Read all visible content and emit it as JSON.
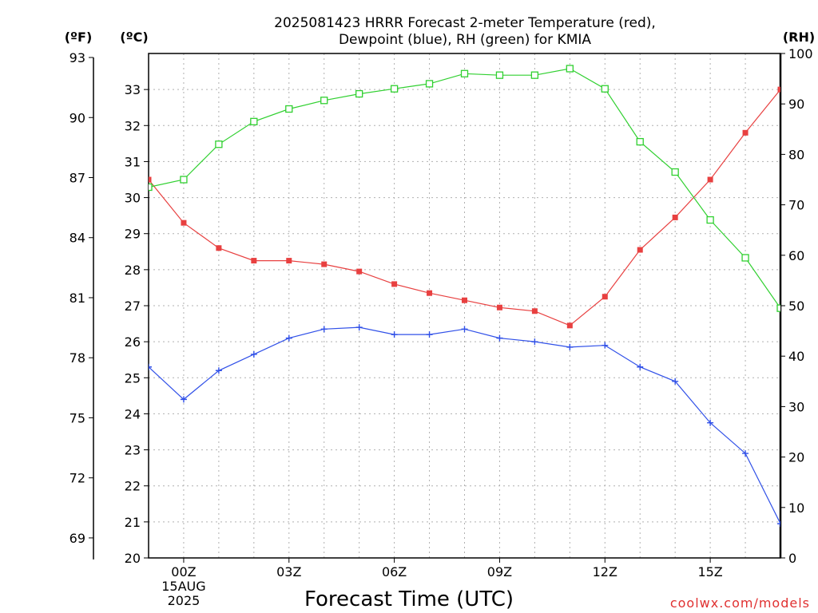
{
  "chart_data": {
    "type": "line",
    "title_line1": "2025081423 HRRR Forecast 2-meter Temperature (red),",
    "title_line2": "Dewpoint (blue), RH (green) for KMIA",
    "xlabel": "Forecast Time (UTC)",
    "credit": "coolwx.com/models",
    "x_ticks": [
      {
        "hour": 0,
        "label": "00Z",
        "sub1": "15AUG",
        "sub2": "2025"
      },
      {
        "hour": 3,
        "label": "03Z",
        "sub1": "",
        "sub2": ""
      },
      {
        "hour": 6,
        "label": "06Z",
        "sub1": "",
        "sub2": ""
      },
      {
        "hour": 9,
        "label": "09Z",
        "sub1": "",
        "sub2": ""
      },
      {
        "hour": 12,
        "label": "12Z",
        "sub1": "",
        "sub2": ""
      },
      {
        "hour": 15,
        "label": "15Z",
        "sub1": "",
        "sub2": ""
      }
    ],
    "xlim": [
      -1,
      17
    ],
    "axes": {
      "fahrenheit": {
        "unit_label": "(ºF)",
        "ticks": [
          69,
          72,
          75,
          78,
          81,
          84,
          87,
          90,
          93
        ]
      },
      "celsius": {
        "unit_label": "(ºC)",
        "range": [
          20,
          34
        ],
        "ticks": [
          20,
          21,
          22,
          23,
          24,
          25,
          26,
          27,
          28,
          29,
          30,
          31,
          32,
          33
        ]
      },
      "rh": {
        "unit_label": "(RH)",
        "range": [
          0,
          100
        ],
        "ticks": [
          0,
          10,
          20,
          30,
          40,
          50,
          60,
          70,
          80,
          90,
          100
        ]
      }
    },
    "x": [
      -1,
      0,
      1,
      2,
      3,
      4,
      5,
      6,
      7,
      8,
      9,
      10,
      11,
      12,
      13,
      14,
      15,
      16,
      17
    ],
    "series": [
      {
        "key": "temperature",
        "axis": "celsius",
        "color": "#e84040",
        "marker": "filled-square",
        "values": [
          30.5,
          29.3,
          28.6,
          28.25,
          28.25,
          28.15,
          27.95,
          27.6,
          27.35,
          27.15,
          26.95,
          26.85,
          26.45,
          27.25,
          28.55,
          29.45,
          30.5,
          31.8,
          33.0
        ]
      },
      {
        "key": "dewpoint",
        "axis": "celsius",
        "color": "#3050e8",
        "marker": "plus",
        "values": [
          25.3,
          24.4,
          25.2,
          25.65,
          26.1,
          26.35,
          26.4,
          26.2,
          26.2,
          26.35,
          26.1,
          26.0,
          25.85,
          25.9,
          25.3,
          24.9,
          23.75,
          22.9,
          20.95
        ]
      },
      {
        "key": "rh",
        "axis": "rh",
        "color": "#30d030",
        "marker": "open-square",
        "values": [
          73.5,
          75.0,
          82.0,
          86.5,
          89.0,
          90.7,
          92.0,
          93.0,
          94.0,
          96.0,
          95.7,
          95.7,
          97.0,
          93.0,
          82.5,
          76.5,
          67.0,
          59.5,
          49.5
        ]
      }
    ]
  }
}
